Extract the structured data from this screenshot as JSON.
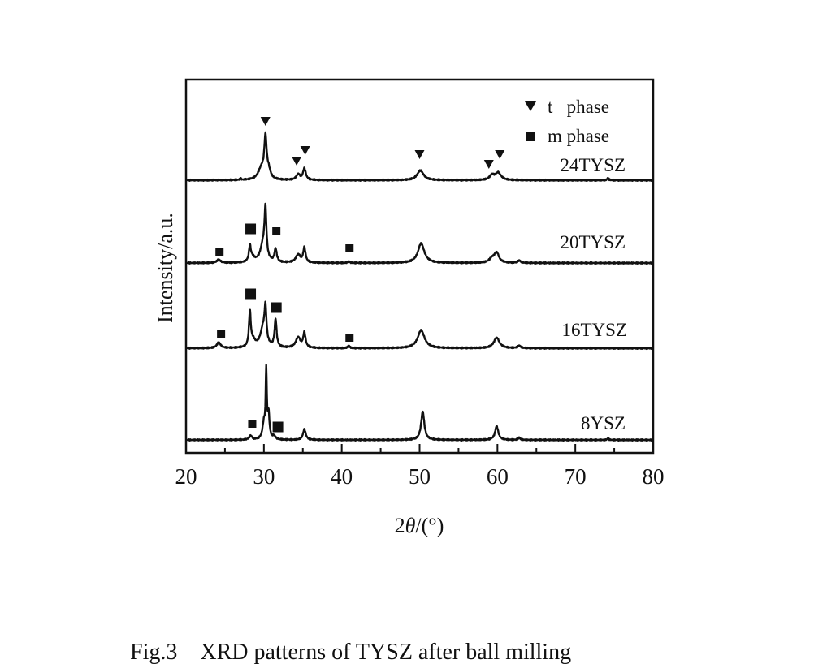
{
  "chart_data": {
    "type": "line",
    "title": "",
    "xlabel": "2θ/(°)",
    "xlabel_parts": {
      "prefix": "2",
      "symbol": "θ",
      "suffix": "/(°)"
    },
    "ylabel": "Intensity/a.u.",
    "xlim": [
      20,
      80
    ],
    "ylim": [
      0,
      460
    ],
    "xticks": [
      20,
      30,
      40,
      50,
      60,
      70,
      80
    ],
    "xtick_labels": [
      "20",
      "30",
      "40",
      "50",
      "60",
      "70",
      "80"
    ],
    "minor_xticks": [
      25,
      35,
      45,
      55,
      65,
      75
    ],
    "grid": false,
    "legend": {
      "placement": "top-right",
      "entries": [
        {
          "marker": "triangle-down",
          "label": "t   phase"
        },
        {
          "marker": "square",
          "label": "m phase"
        }
      ]
    },
    "series": [
      {
        "name": "24TYSZ",
        "offset": 336,
        "peaks": [
          {
            "x": 29.7,
            "h": 14,
            "w": 0.7
          },
          {
            "x": 30.2,
            "h": 48,
            "w": 0.25
          },
          {
            "x": 30.6,
            "h": 10,
            "w": 0.4
          },
          {
            "x": 34.4,
            "h": 7,
            "w": 0.4
          },
          {
            "x": 35.2,
            "h": 14,
            "w": 0.3
          },
          {
            "x": 50.1,
            "h": 12,
            "w": 0.7
          },
          {
            "x": 59.3,
            "h": 6,
            "w": 0.5
          },
          {
            "x": 60.1,
            "h": 9,
            "w": 0.6
          },
          {
            "x": 74.2,
            "h": 3,
            "w": 0.15
          },
          {
            "x": 27.0,
            "h": 2,
            "w": 0.1
          }
        ]
      },
      {
        "name": "20TYSZ",
        "offset": 234,
        "peaks": [
          {
            "x": 24.2,
            "h": 4,
            "w": 0.4
          },
          {
            "x": 28.2,
            "h": 18,
            "w": 0.2
          },
          {
            "x": 28.5,
            "h": 6,
            "w": 0.5
          },
          {
            "x": 29.9,
            "h": 22,
            "w": 0.6
          },
          {
            "x": 30.2,
            "h": 58,
            "w": 0.2
          },
          {
            "x": 31.5,
            "h": 16,
            "w": 0.25
          },
          {
            "x": 34.4,
            "h": 10,
            "w": 0.5
          },
          {
            "x": 35.2,
            "h": 18,
            "w": 0.25
          },
          {
            "x": 40.9,
            "h": 2,
            "w": 0.2
          },
          {
            "x": 50.2,
            "h": 24,
            "w": 0.7
          },
          {
            "x": 59.3,
            "h": 5,
            "w": 0.6
          },
          {
            "x": 59.9,
            "h": 12,
            "w": 0.5
          },
          {
            "x": 62.8,
            "h": 3,
            "w": 0.3
          }
        ]
      },
      {
        "name": "16TYSZ",
        "offset": 129,
        "peaks": [
          {
            "x": 24.2,
            "h": 7,
            "w": 0.4
          },
          {
            "x": 28.2,
            "h": 42,
            "w": 0.2
          },
          {
            "x": 28.6,
            "h": 8,
            "w": 0.5
          },
          {
            "x": 29.9,
            "h": 24,
            "w": 0.6
          },
          {
            "x": 30.2,
            "h": 40,
            "w": 0.2
          },
          {
            "x": 31.5,
            "h": 34,
            "w": 0.22
          },
          {
            "x": 34.4,
            "h": 13,
            "w": 0.5
          },
          {
            "x": 35.2,
            "h": 18,
            "w": 0.25
          },
          {
            "x": 40.9,
            "h": 3,
            "w": 0.2
          },
          {
            "x": 50.2,
            "h": 22,
            "w": 0.75
          },
          {
            "x": 59.9,
            "h": 13,
            "w": 0.6
          },
          {
            "x": 62.8,
            "h": 3,
            "w": 0.3
          }
        ]
      },
      {
        "name": "8YSZ",
        "offset": 16,
        "peaks": [
          {
            "x": 28.3,
            "h": 5,
            "w": 0.3
          },
          {
            "x": 30.0,
            "h": 20,
            "w": 0.3
          },
          {
            "x": 30.3,
            "h": 80,
            "w": 0.12
          },
          {
            "x": 30.6,
            "h": 30,
            "w": 0.2
          },
          {
            "x": 31.3,
            "h": 4,
            "w": 0.3
          },
          {
            "x": 35.2,
            "h": 13,
            "w": 0.3
          },
          {
            "x": 50.4,
            "h": 35,
            "w": 0.35
          },
          {
            "x": 59.9,
            "h": 17,
            "w": 0.35
          },
          {
            "x": 62.8,
            "h": 3,
            "w": 0.2
          },
          {
            "x": 74.2,
            "h": 2,
            "w": 0.15
          }
        ]
      }
    ],
    "markers": [
      {
        "series": "24TYSZ",
        "phase": "t",
        "x": 30.2,
        "y": 408
      },
      {
        "series": "24TYSZ",
        "phase": "t",
        "x": 34.2,
        "y": 359
      },
      {
        "series": "24TYSZ",
        "phase": "t",
        "x": 35.3,
        "y": 372
      },
      {
        "series": "24TYSZ",
        "phase": "t",
        "x": 50.0,
        "y": 367
      },
      {
        "series": "24TYSZ",
        "phase": "t",
        "x": 58.9,
        "y": 355
      },
      {
        "series": "24TYSZ",
        "phase": "t",
        "x": 60.3,
        "y": 367
      },
      {
        "series": "20TYSZ",
        "phase": "m",
        "x": 24.3,
        "y": 247
      },
      {
        "series": "20TYSZ",
        "phase": "m",
        "x": 28.3,
        "y": 276,
        "large": true
      },
      {
        "series": "20TYSZ",
        "phase": "m",
        "x": 31.6,
        "y": 273
      },
      {
        "series": "20TYSZ",
        "phase": "m",
        "x": 41.0,
        "y": 252
      },
      {
        "series": "16TYSZ",
        "phase": "m",
        "x": 24.5,
        "y": 147
      },
      {
        "series": "16TYSZ",
        "phase": "m",
        "x": 28.3,
        "y": 196,
        "large": true
      },
      {
        "series": "16TYSZ",
        "phase": "m",
        "x": 31.6,
        "y": 179,
        "large": true
      },
      {
        "series": "16TYSZ",
        "phase": "m",
        "x": 41.0,
        "y": 142
      },
      {
        "series": "8YSZ",
        "phase": "m",
        "x": 28.5,
        "y": 36
      },
      {
        "series": "8YSZ",
        "phase": "m",
        "x": 31.8,
        "y": 32,
        "large": true
      }
    ],
    "sample_labels": [
      "24TYSZ",
      "20TYSZ",
      "16TYSZ",
      "8YSZ"
    ]
  },
  "caption": "Fig.3    XRD patterns of TYSZ after ball milling"
}
